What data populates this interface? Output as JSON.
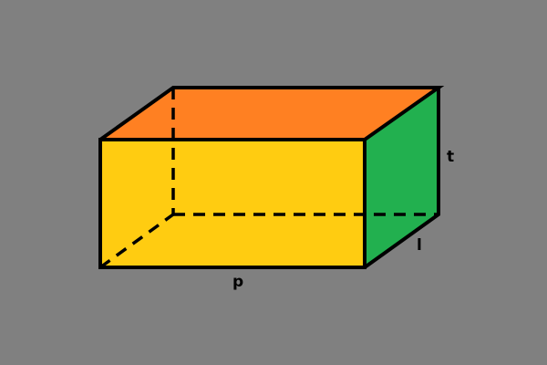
{
  "figure": {
    "background_color": "#808080",
    "edge_color": "#000000",
    "faces": {
      "front": {
        "color": "#FFCC11"
      },
      "top": {
        "color": "#FF8022"
      },
      "side": {
        "color": "#22B04F"
      }
    },
    "labels": {
      "length": "p",
      "width": "l",
      "height": "t"
    }
  }
}
